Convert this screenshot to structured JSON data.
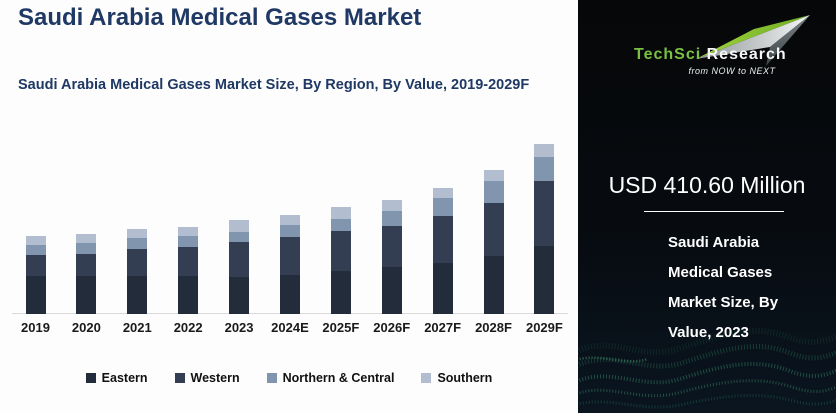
{
  "title": "Saudi Arabia Medical Gases Market",
  "subtitle": "Saudi Arabia Medical Gases Market Size, By Region, By Value, 2019-2029F",
  "chart_data": {
    "type": "bar",
    "stacked": true,
    "title": "Saudi Arabia Medical Gases Market Size, By Region, By Value, 2019-2029F",
    "unit": "USD Million",
    "categories": [
      "2019",
      "2020",
      "2021",
      "2022",
      "2023",
      "2024E",
      "2025F",
      "2026F",
      "2027F",
      "2028F",
      "2029F"
    ],
    "series": [
      {
        "name": "Eastern",
        "color": "#222c3a",
        "values": [
          167,
          167,
          166,
          167,
          164,
          173,
          189,
          204,
          223,
          252,
          296
        ]
      },
      {
        "name": "Western",
        "color": "#333e52",
        "values": [
          92,
          97,
          117,
          126,
          151,
          164,
          173,
          183,
          205,
          236,
          287
        ]
      },
      {
        "name": "Northern & Central",
        "color": "#8295ae",
        "values": [
          44,
          47,
          48,
          47,
          44,
          51,
          56,
          66,
          78,
          94,
          103
        ]
      },
      {
        "name": "Southern",
        "color": "#b2bdd0",
        "values": [
          37,
          40,
          43,
          41,
          52,
          47,
          51,
          48,
          47,
          48,
          59
        ]
      }
    ],
    "totals": [
      340,
      351,
      374,
      381,
      410.6,
      435,
      469,
      501,
      553,
      630,
      745
    ],
    "xlabel": "",
    "ylabel": "",
    "ylim": [
      0,
      770
    ],
    "grid": false,
    "y_axis_visible": false,
    "legend_position": "bottom"
  },
  "side_panel": {
    "logo": {
      "brand_primary": "TechSci",
      "brand_secondary": "Research",
      "tagline": "from NOW to NEXT"
    },
    "highlight_value": "USD 410.60 Million",
    "caption_lines": [
      "Saudi Arabia",
      "Medical Gases",
      "Market Size, By",
      "Value, 2023"
    ]
  },
  "colors": {
    "title_navy": "#1f3864",
    "chart_background": "#fdfdfd",
    "axis_line": "#d9d9d9",
    "panel_background": "#070b10",
    "brand_green": "#7ac143",
    "panel_text": "#ffffff",
    "wave_green": "#2e7d5b"
  }
}
